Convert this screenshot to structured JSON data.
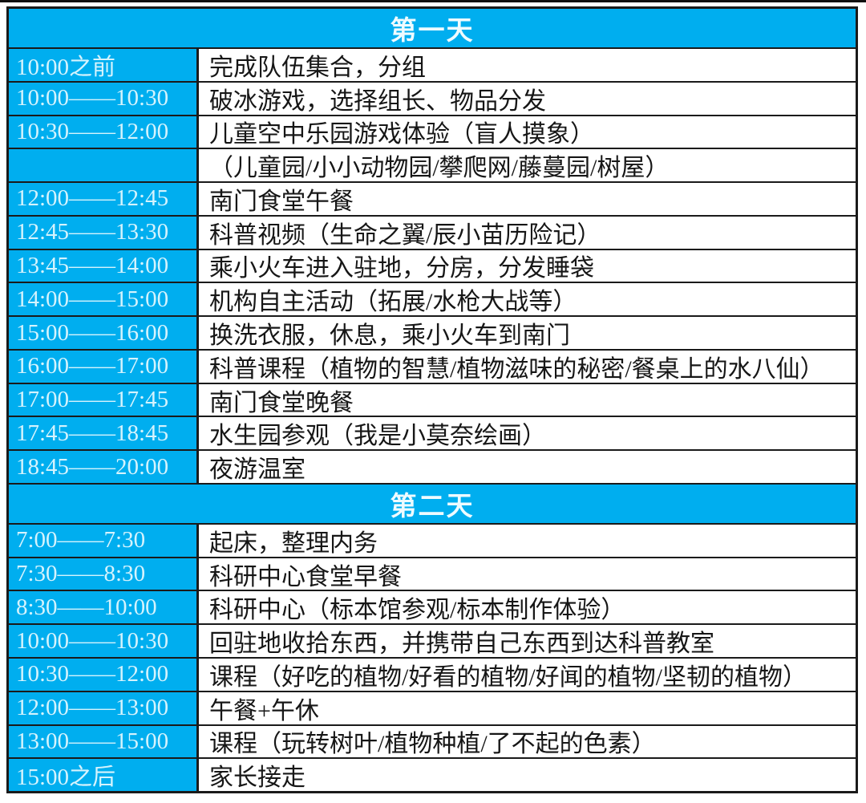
{
  "colors": {
    "accent": "#00aeef",
    "border": "#1a1a1a",
    "header_text": "#eefbff",
    "time_text": "#d5f3fd"
  },
  "table": {
    "sections": [
      {
        "header": "第一天",
        "rows": [
          {
            "time": "10:00之前",
            "activity": "完成队伍集合，分组"
          },
          {
            "time": "10:00——10:30",
            "activity": "破冰游戏，选择组长、物品分发"
          },
          {
            "time": "10:30——12:00",
            "activity": "儿童空中乐园游戏体验（盲人摸象）"
          },
          {
            "time": "",
            "activity": "（儿童园/小小动物园/攀爬网/藤蔓园/树屋）"
          },
          {
            "time": "12:00——12:45",
            "activity": "南门食堂午餐"
          },
          {
            "time": "12:45——13:30",
            "activity": "科普视频（生命之翼/辰小苗历险记）"
          },
          {
            "time": "13:45——14:00",
            "activity": "乘小火车进入驻地，分房，分发睡袋"
          },
          {
            "time": "14:00——15:00",
            "activity": "机构自主活动（拓展/水枪大战等）"
          },
          {
            "time": "15:00——16:00",
            "activity": "换洗衣服，休息，乘小火车到南门"
          },
          {
            "time": "16:00——17:00",
            "activity": "科普课程（植物的智慧/植物滋味的秘密/餐桌上的水八仙）"
          },
          {
            "time": "17:00——17:45",
            "activity": "南门食堂晚餐"
          },
          {
            "time": "17:45——18:45",
            "activity": "水生园参观（我是小莫奈绘画）"
          },
          {
            "time": "18:45——20:00",
            "activity": "夜游温室"
          }
        ]
      },
      {
        "header": "第二天",
        "rows": [
          {
            "time": "7:00——7:30",
            "activity": "起床，整理内务"
          },
          {
            "time": "7:30——8:30",
            "activity": "科研中心食堂早餐"
          },
          {
            "time": "8:30——10:00",
            "activity": "科研中心（标本馆参观/标本制作体验）"
          },
          {
            "time": "10:00——10:30",
            "activity": "回驻地收拾东西，并携带自己东西到达科普教室"
          },
          {
            "time": "10:30——12:00",
            "activity": "课程（好吃的植物/好看的植物/好闻的植物/坚韧的植物）"
          },
          {
            "time": "12:00——13:00",
            "activity": "午餐+午休"
          },
          {
            "time": "13:00——15:00",
            "activity": "课程（玩转树叶/植物种植/了不起的色素）"
          },
          {
            "time": "15:00之后",
            "activity": "家长接走"
          }
        ]
      }
    ]
  }
}
